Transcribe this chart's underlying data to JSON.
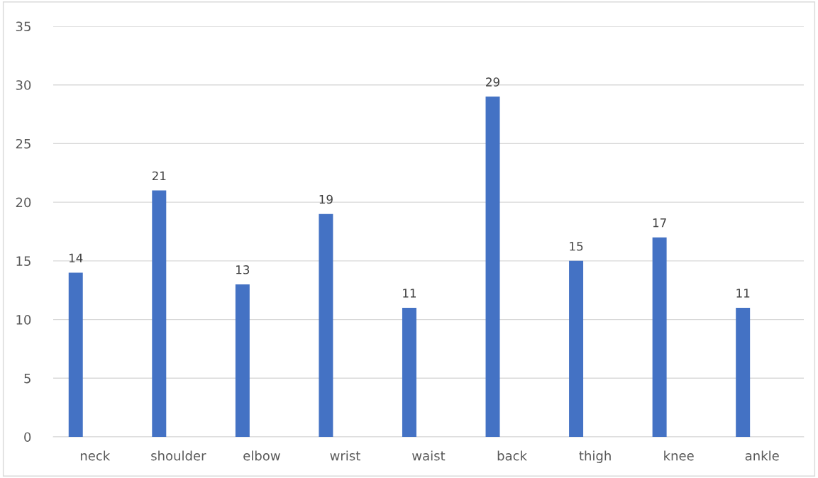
{
  "chart_data": {
    "type": "bar",
    "categories": [
      "neck",
      "shoulder",
      "elbow",
      "wrist",
      "waist",
      "back",
      "thigh",
      "knee",
      "ankle"
    ],
    "values": [
      14,
      21,
      13,
      19,
      11,
      29,
      15,
      17,
      11
    ],
    "color": "#4472c4",
    "ylim": [
      0,
      35
    ],
    "yticks": [
      0,
      5,
      10,
      15,
      20,
      25,
      30,
      35
    ],
    "grid": "y",
    "data_labels": true,
    "legend": false
  }
}
